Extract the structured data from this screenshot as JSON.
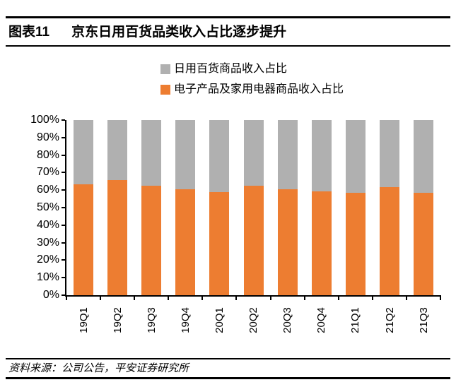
{
  "header": {
    "figure_label": "图表11",
    "figure_title": "京东日用百货品类收入占比逐步提升"
  },
  "legend": [
    {
      "label": "日用百货商品收入占比",
      "color": "#B0B0B0"
    },
    {
      "label": "电子产品及家用电器商品收入占比",
      "color": "#ED7D31"
    }
  ],
  "chart_data": {
    "type": "bar",
    "stacked": true,
    "title": "京东日用百货品类收入占比逐步提升",
    "categories": [
      "19Q1",
      "19Q2",
      "19Q3",
      "19Q4",
      "20Q1",
      "20Q2",
      "20Q3",
      "20Q4",
      "21Q1",
      "21Q2",
      "21Q3"
    ],
    "series": [
      {
        "name": "电子产品及家用电器商品收入占比",
        "color": "#ED7D31",
        "stack_position": "bottom",
        "values": [
          63.4,
          65.8,
          62.6,
          60.3,
          58.7,
          62.5,
          60.5,
          59.3,
          58.4,
          61.7,
          58.5
        ]
      },
      {
        "name": "日用百货商品收入占比",
        "color": "#B0B0B0",
        "stack_position": "top",
        "values": [
          36.6,
          34.2,
          37.4,
          39.7,
          41.3,
          37.5,
          39.5,
          40.7,
          41.6,
          38.3,
          41.5
        ]
      }
    ],
    "unit": "percent",
    "ylim": [
      0,
      100
    ],
    "ytick_labels": [
      "100%",
      "90%",
      "80%",
      "70%",
      "60%",
      "50%",
      "40%",
      "30%",
      "20%",
      "10%",
      "0%"
    ],
    "grid": false,
    "legend_position": "top-center"
  },
  "footer": {
    "source": "资料来源：公司公告，平安证券研究所"
  }
}
